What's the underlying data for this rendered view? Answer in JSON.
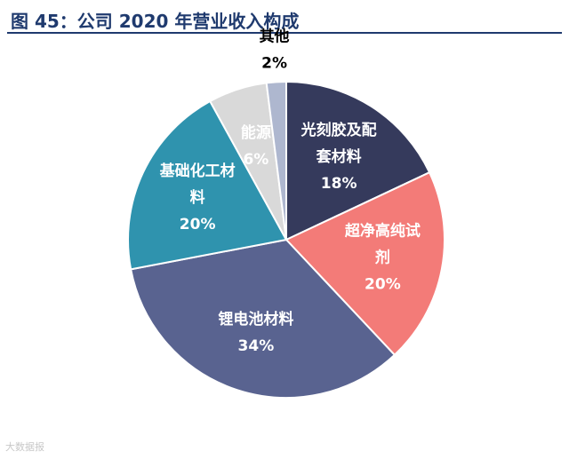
{
  "header": {
    "title": "图 45：公司 2020 年营业收入构成"
  },
  "watermark": {
    "text": "大数据报"
  },
  "chart_data": {
    "type": "pie",
    "title": "",
    "start_angle_deg": 0,
    "direction": "clockwise",
    "slices": [
      {
        "label_lines": [
          "光刻胶及配",
          "套材料"
        ],
        "pct_label": "18%",
        "value": 18,
        "color": "#353a5c",
        "text_color": "#ffffff"
      },
      {
        "label_lines": [
          "超净高纯试",
          "剂"
        ],
        "pct_label": "20%",
        "value": 20,
        "color": "#f37b78",
        "text_color": "#ffffff"
      },
      {
        "label_lines": [
          "锂电池材料"
        ],
        "pct_label": "34%",
        "value": 34,
        "color": "#596390",
        "text_color": "#ffffff"
      },
      {
        "label_lines": [
          "基础化工材",
          "料"
        ],
        "pct_label": "20%",
        "value": 20,
        "color": "#2f93ae",
        "text_color": "#ffffff"
      },
      {
        "label_lines": [
          "能源"
        ],
        "pct_label": "6%",
        "value": 6,
        "color": "#d9d9d9",
        "text_color": "#ffffff"
      },
      {
        "label_lines": [
          "其他"
        ],
        "pct_label": "2%",
        "value": 2,
        "color": "#aeb7cf",
        "text_color": "#000000",
        "outside": true
      }
    ]
  }
}
